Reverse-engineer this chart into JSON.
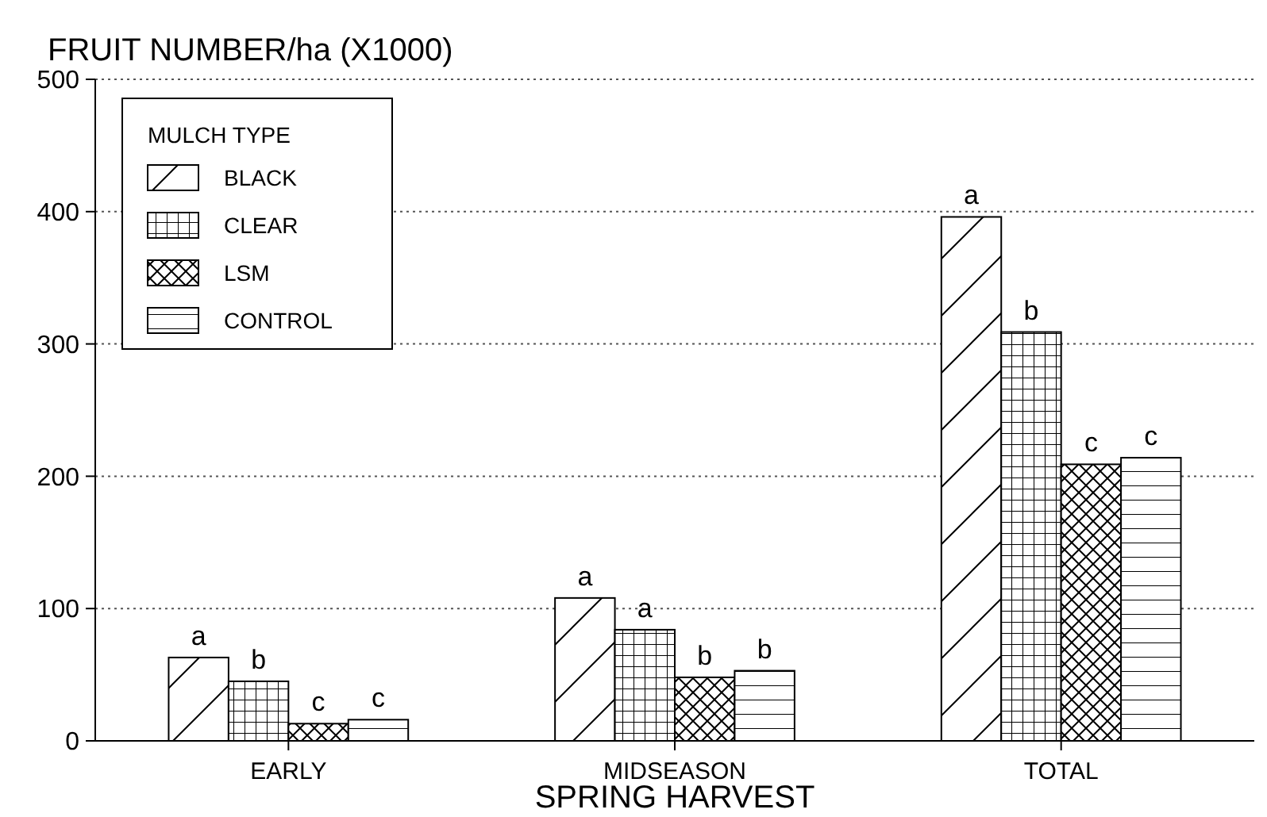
{
  "chart_data": {
    "type": "bar",
    "ylabel": "FRUIT NUMBER/ha (X1000)",
    "xlabel": "SPRING HARVEST",
    "legend_title": "MULCH TYPE",
    "legend": "top left",
    "grid": "y",
    "categories": [
      "EARLY",
      "MIDSEASON",
      "TOTAL"
    ],
    "ylim": [
      0,
      500
    ],
    "yticks": [
      0,
      100,
      200,
      300,
      400,
      500
    ],
    "series": [
      {
        "name": "BLACK",
        "color": "#000000",
        "values": [
          63,
          108,
          396
        ],
        "value_labels": [
          "a",
          "a",
          "a"
        ]
      },
      {
        "name": "CLEAR",
        "color": "#000000",
        "values": [
          45,
          84,
          309
        ],
        "value_labels": [
          "b",
          "a",
          "b"
        ]
      },
      {
        "name": "LSM",
        "color": "#000000",
        "values": [
          13,
          48,
          209
        ],
        "value_labels": [
          "c",
          "b",
          "c"
        ]
      },
      {
        "name": "CONTROL",
        "color": "#000000",
        "values": [
          16,
          53,
          214
        ],
        "value_labels": [
          "c",
          "b",
          "c"
        ]
      }
    ]
  }
}
